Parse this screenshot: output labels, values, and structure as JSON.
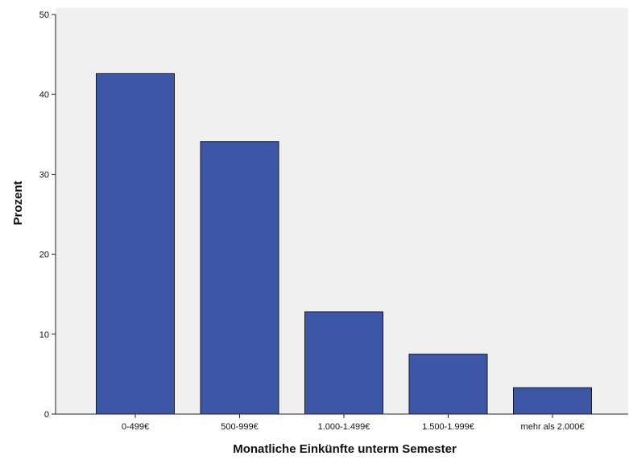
{
  "chart_data": {
    "type": "bar",
    "title": "",
    "xlabel": "Monatliche Einkünfte unterm Semester",
    "ylabel": "Prozent",
    "categories": [
      "0-499€",
      "500-999€",
      "1.000-1.499€",
      "1.500-1.999€",
      "mehr als 2.000€"
    ],
    "values": [
      42.6,
      34.1,
      12.8,
      7.5,
      3.3
    ],
    "ylim": [
      0,
      50
    ],
    "yticks": [
      0,
      10,
      20,
      30,
      40,
      50
    ],
    "grid": false,
    "legend": "none",
    "colors": {
      "bar_fill": "#3d56a6",
      "bar_stroke": "#1a1a1a",
      "plot_background": "#f0f0f0",
      "page_background": "#ffffff",
      "axis": "#222222"
    }
  }
}
